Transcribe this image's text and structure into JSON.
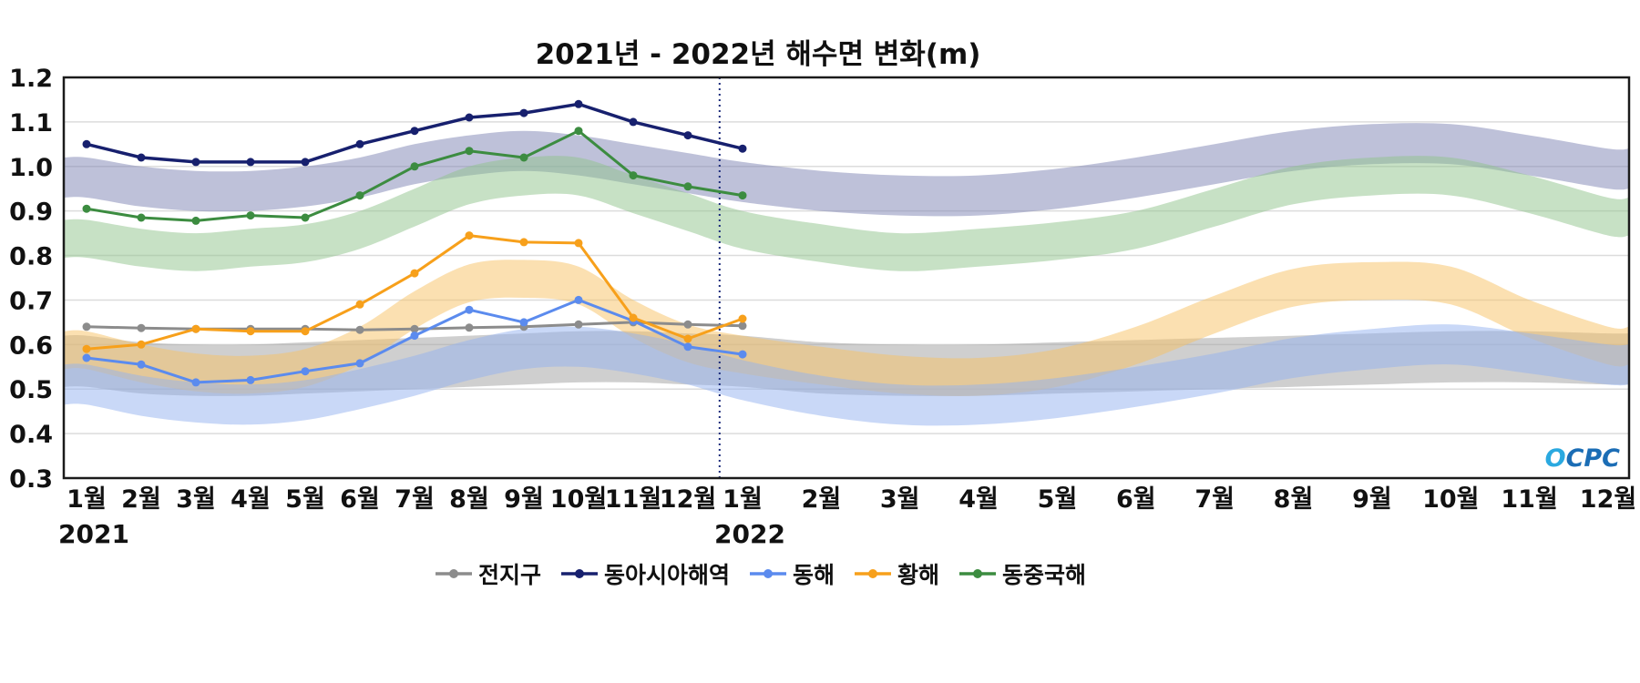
{
  "logo": "OCPC",
  "chart_data": {
    "type": "line",
    "title": "2021년 - 2022년 해수면 변화(m)",
    "xlabel": "",
    "ylabel": "",
    "ylim": [
      0.3,
      1.2
    ],
    "yticks": [
      0.3,
      0.4,
      0.5,
      0.6,
      0.7,
      0.8,
      0.9,
      1.0,
      1.1,
      1.2
    ],
    "grid": "horizontal",
    "legend_position": "bottom",
    "x_labels": [
      "1월",
      "2월",
      "3월",
      "4월",
      "5월",
      "6월",
      "7월",
      "8월",
      "9월",
      "10월",
      "11월",
      "12월",
      "1월",
      "2월",
      "3월",
      "4월",
      "5월",
      "6월",
      "7월",
      "8월",
      "9월",
      "10월",
      "11월",
      "12월"
    ],
    "year_labels": [
      {
        "label": "2021",
        "month_index": 0
      },
      {
        "label": "2022",
        "month_index": 12
      }
    ],
    "divider_month_index": 12,
    "divider_color": "#1a2a7a",
    "series": [
      {
        "name": "전지구",
        "color": "#8c8c8c",
        "values": [
          0.64,
          0.637,
          0.635,
          0.635,
          0.635,
          0.633,
          0.635,
          0.638,
          0.64,
          0.645,
          0.65,
          0.645,
          0.642
        ]
      },
      {
        "name": "동아시아해역",
        "color": "#17206e",
        "values": [
          1.05,
          1.02,
          1.01,
          1.01,
          1.01,
          1.05,
          1.08,
          1.11,
          1.12,
          1.14,
          1.1,
          1.07,
          1.04
        ]
      },
      {
        "name": "동해",
        "color": "#5b8bee",
        "values": [
          0.57,
          0.555,
          0.515,
          0.52,
          0.54,
          0.558,
          0.62,
          0.678,
          0.65,
          0.7,
          0.653,
          0.595,
          0.578
        ]
      },
      {
        "name": "황해",
        "color": "#f7a01b",
        "values": [
          0.59,
          0.6,
          0.635,
          0.63,
          0.63,
          0.69,
          0.76,
          0.845,
          0.83,
          0.828,
          0.66,
          0.613,
          0.658
        ]
      },
      {
        "name": "동중국해",
        "color": "#3c8c40",
        "values": [
          0.905,
          0.885,
          0.878,
          0.89,
          0.885,
          0.935,
          1.0,
          1.035,
          1.02,
          1.08,
          0.98,
          0.955,
          0.935
        ]
      }
    ],
    "bands": [
      {
        "name": "전지구",
        "color": "#a0a0a0",
        "high": [
          0.62,
          0.605,
          0.6,
          0.6,
          0.605,
          0.61,
          0.615,
          0.62,
          0.625,
          0.63,
          0.63,
          0.625,
          0.62,
          0.605,
          0.6,
          0.6,
          0.605,
          0.61,
          0.615,
          0.62,
          0.625,
          0.63,
          0.63,
          0.625
        ],
        "low": [
          0.505,
          0.49,
          0.485,
          0.485,
          0.49,
          0.495,
          0.5,
          0.505,
          0.51,
          0.515,
          0.515,
          0.51,
          0.505,
          0.49,
          0.485,
          0.485,
          0.49,
          0.495,
          0.5,
          0.505,
          0.51,
          0.515,
          0.515,
          0.51
        ]
      },
      {
        "name": "동아시아해역",
        "color": "#7d84b4",
        "high": [
          1.02,
          1.0,
          0.99,
          0.99,
          1.0,
          1.02,
          1.05,
          1.07,
          1.08,
          1.07,
          1.05,
          1.03,
          1.01,
          0.99,
          0.98,
          0.98,
          0.995,
          1.02,
          1.05,
          1.08,
          1.095,
          1.095,
          1.07,
          1.04
        ],
        "low": [
          0.93,
          0.91,
          0.9,
          0.9,
          0.91,
          0.93,
          0.96,
          0.98,
          0.99,
          0.98,
          0.96,
          0.94,
          0.92,
          0.9,
          0.89,
          0.89,
          0.905,
          0.93,
          0.96,
          0.99,
          1.005,
          1.005,
          0.98,
          0.95
        ]
      },
      {
        "name": "동중국해",
        "color": "#8fc48b",
        "high": [
          0.88,
          0.86,
          0.85,
          0.86,
          0.87,
          0.9,
          0.95,
          1.0,
          1.02,
          1.02,
          0.98,
          0.94,
          0.9,
          0.87,
          0.85,
          0.86,
          0.875,
          0.9,
          0.95,
          1.0,
          1.02,
          1.02,
          0.98,
          0.93
        ],
        "low": [
          0.795,
          0.775,
          0.765,
          0.775,
          0.785,
          0.815,
          0.865,
          0.915,
          0.935,
          0.935,
          0.895,
          0.855,
          0.815,
          0.785,
          0.765,
          0.775,
          0.79,
          0.815,
          0.865,
          0.915,
          0.935,
          0.935,
          0.895,
          0.845
        ]
      },
      {
        "name": "황해",
        "color": "#f8c264",
        "high": [
          0.63,
          0.6,
          0.58,
          0.575,
          0.59,
          0.64,
          0.72,
          0.78,
          0.79,
          0.775,
          0.7,
          0.645,
          0.62,
          0.595,
          0.575,
          0.57,
          0.59,
          0.64,
          0.71,
          0.77,
          0.785,
          0.775,
          0.7,
          0.64
        ],
        "low": [
          0.545,
          0.515,
          0.495,
          0.49,
          0.505,
          0.555,
          0.635,
          0.695,
          0.705,
          0.69,
          0.615,
          0.56,
          0.535,
          0.51,
          0.49,
          0.485,
          0.505,
          0.555,
          0.625,
          0.685,
          0.7,
          0.69,
          0.615,
          0.555
        ]
      },
      {
        "name": "동해",
        "color": "#93b2f0",
        "high": [
          0.555,
          0.53,
          0.515,
          0.51,
          0.52,
          0.545,
          0.575,
          0.61,
          0.635,
          0.64,
          0.625,
          0.6,
          0.565,
          0.53,
          0.51,
          0.51,
          0.525,
          0.55,
          0.58,
          0.615,
          0.635,
          0.645,
          0.625,
          0.6
        ],
        "low": [
          0.465,
          0.44,
          0.425,
          0.42,
          0.43,
          0.455,
          0.485,
          0.52,
          0.545,
          0.55,
          0.535,
          0.51,
          0.475,
          0.44,
          0.42,
          0.42,
          0.435,
          0.46,
          0.49,
          0.525,
          0.545,
          0.555,
          0.535,
          0.51
        ]
      }
    ]
  }
}
